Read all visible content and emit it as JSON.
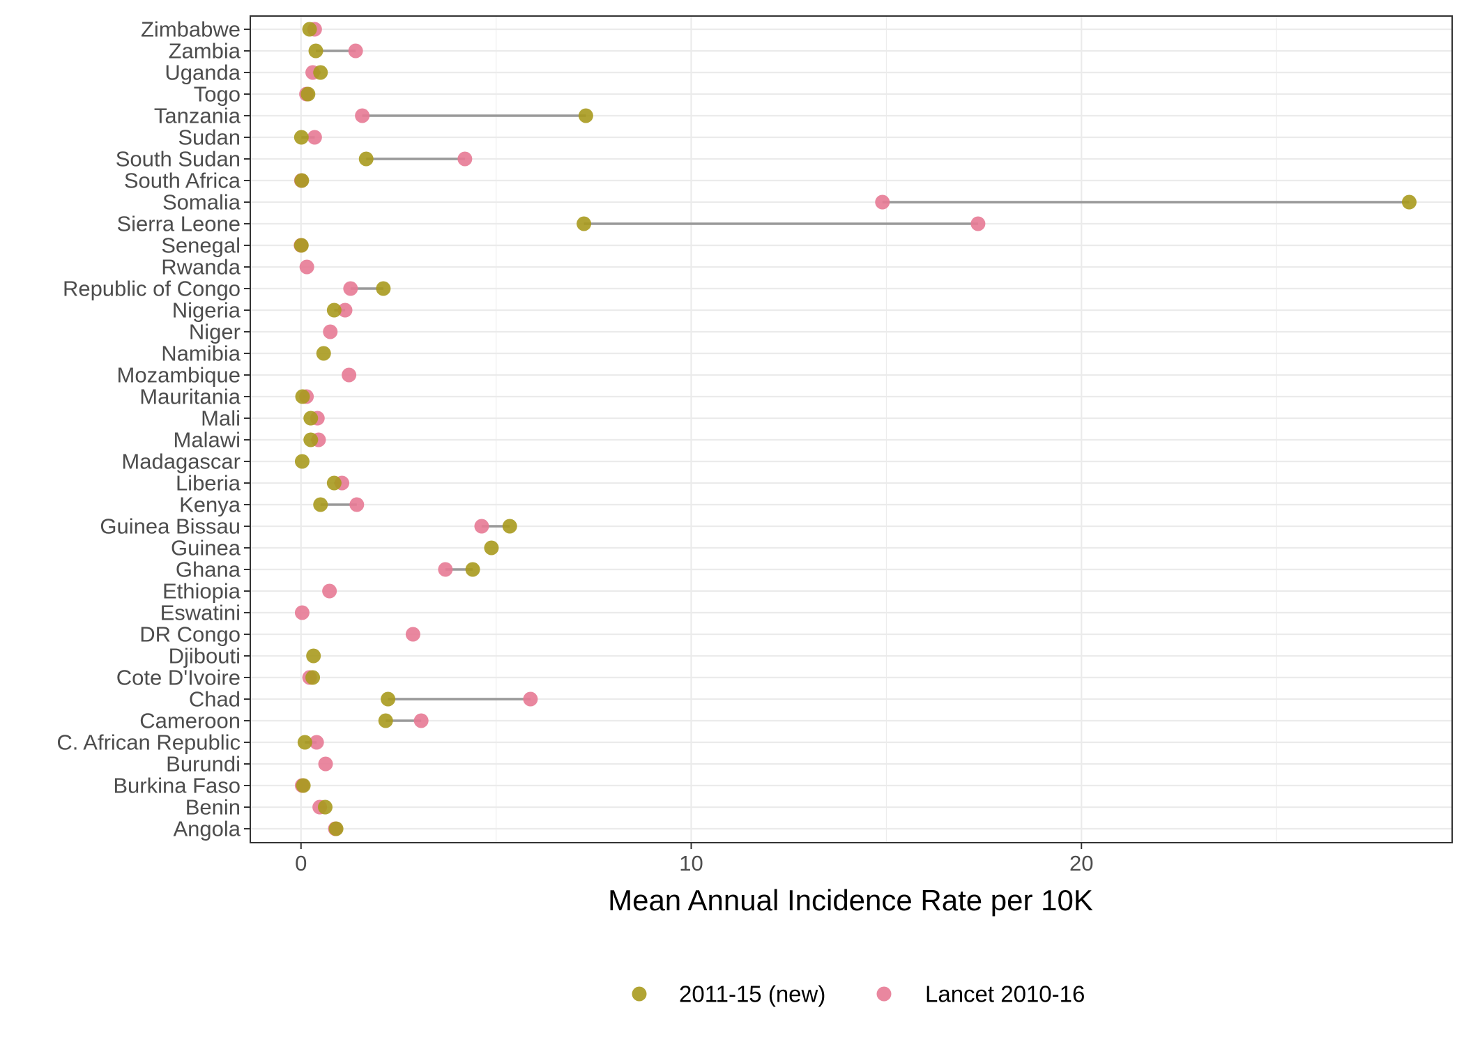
{
  "chart_data": {
    "type": "scatter",
    "xlabel": "Mean Annual Incidence Rate per 10K",
    "ylabel": "",
    "xlim": [
      -1.3,
      29.5
    ],
    "x_ticks": [
      0,
      10,
      20
    ],
    "grid": true,
    "legend_position": "bottom",
    "categories": [
      "Zimbabwe",
      "Zambia",
      "Uganda",
      "Togo",
      "Tanzania",
      "Sudan",
      "South Sudan",
      "South Africa",
      "Somalia",
      "Sierra Leone",
      "Senegal",
      "Rwanda",
      "Republic of Congo",
      "Nigeria",
      "Niger",
      "Namibia",
      "Mozambique",
      "Mauritania",
      "Mali",
      "Malawi",
      "Madagascar",
      "Liberia",
      "Kenya",
      "Guinea Bissau",
      "Guinea",
      "Ghana",
      "Ethiopia",
      "Eswatini",
      "DR Congo",
      "Djibouti",
      "Cote D'Ivoire",
      "Chad",
      "Cameroon",
      "C. African Republic",
      "Burundi",
      "Burkina Faso",
      "Benin",
      "Angola"
    ],
    "series": [
      {
        "name": "2011-15 (new)",
        "color": "#A89A1E",
        "values": [
          0.22,
          0.38,
          0.5,
          0.18,
          7.3,
          0.01,
          1.67,
          0.02,
          28.4,
          7.25,
          0.01,
          null,
          2.11,
          0.85,
          null,
          0.58,
          null,
          0.04,
          0.25,
          0.25,
          0.03,
          0.85,
          0.5,
          5.35,
          4.88,
          4.4,
          null,
          null,
          null,
          0.32,
          0.3,
          2.23,
          2.17,
          0.1,
          null,
          0.06,
          0.62,
          0.9
        ]
      },
      {
        "name": "Lancet 2010-16",
        "color": "#E77A95",
        "values": [
          0.35,
          1.4,
          0.3,
          0.14,
          1.57,
          0.35,
          4.2,
          0.01,
          14.9,
          17.35,
          0.0,
          0.15,
          1.27,
          1.13,
          0.75,
          null,
          1.23,
          0.14,
          0.42,
          0.45,
          null,
          1.05,
          1.43,
          4.63,
          null,
          3.7,
          0.73,
          0.03,
          2.87,
          null,
          0.22,
          5.88,
          3.08,
          0.4,
          0.63,
          0.03,
          0.48,
          0.88
        ]
      }
    ]
  }
}
